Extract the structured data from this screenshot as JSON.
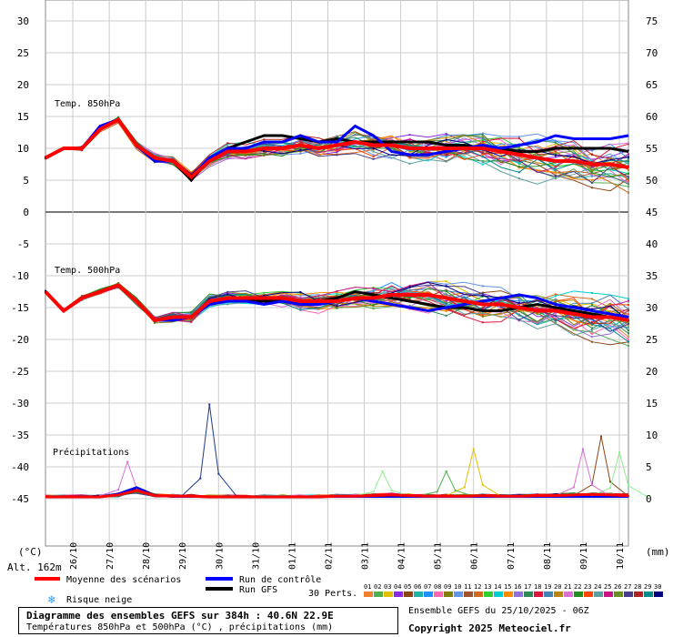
{
  "chart_data": {
    "type": "line",
    "title": "Diagramme des ensembles GEFS sur 384h : 40.6N 22.9E",
    "subtitle": "Températures 850hPa et 500hPa (°C) , précipitations (mm)",
    "run_info": "Ensemble GEFS du 25/10/2025 - 06Z",
    "copyright": "Copyright 2025 Meteociel.fr",
    "altitude_label": "Alt. 162m",
    "left_unit": "(°C)",
    "right_unit": "(mm)",
    "perts_label": "30 Perts.",
    "left_ticks": [
      30,
      25,
      20,
      15,
      10,
      5,
      0,
      -5,
      -10,
      -15,
      -20,
      -25,
      -30,
      -35,
      -40,
      -45
    ],
    "right_ticks": [
      75,
      70,
      65,
      60,
      55,
      50,
      45,
      40,
      35,
      30,
      25,
      20,
      15,
      10,
      5,
      0
    ],
    "dates": [
      "26/10",
      "27/10",
      "28/10",
      "29/10",
      "30/10",
      "31/10",
      "01/11",
      "02/11",
      "03/11",
      "04/11",
      "05/11",
      "06/11",
      "07/11",
      "08/11",
      "09/11",
      "10/11"
    ],
    "panel_labels": [
      "Temp. 850hPa",
      "Temp. 500hPa",
      "Précipitations"
    ],
    "legend": [
      {
        "name": "Moyenne des scénarios",
        "color": "#ff0000"
      },
      {
        "name": "Run de contrôle",
        "color": "#0000ff"
      },
      {
        "name": "Run GFS",
        "color": "#000000"
      },
      {
        "name": "Risque neige",
        "color": "#3399ff"
      }
    ],
    "member_numbers": [
      "01",
      "02",
      "03",
      "04",
      "05",
      "06",
      "07",
      "08",
      "09",
      "10",
      "11",
      "12",
      "13",
      "14",
      "15",
      "16",
      "17",
      "18",
      "19",
      "20",
      "21",
      "22",
      "23",
      "24",
      "25",
      "26",
      "27",
      "28",
      "29",
      "30"
    ],
    "member_colors": [
      "#f08030",
      "#50b050",
      "#e0c000",
      "#8a2be2",
      "#8b4513",
      "#20b2aa",
      "#1e90ff",
      "#ff69b4",
      "#7f7f00",
      "#6495ed",
      "#a0522d",
      "#d2691e",
      "#32cd32",
      "#00ced1",
      "#ff8c00",
      "#9370db",
      "#2e8b57",
      "#dc143c",
      "#4682b4",
      "#b8860b",
      "#da70d6",
      "#228b22",
      "#ff4500",
      "#5f9ea0",
      "#c71585",
      "#6b8e23",
      "#483d8b",
      "#b22222",
      "#008b8b",
      "#000080"
    ],
    "x_hours": [
      0,
      12,
      24,
      36,
      48,
      60,
      72,
      84,
      96,
      108,
      120,
      132,
      144,
      156,
      168,
      180,
      192,
      204,
      216,
      228,
      240,
      252,
      264,
      276,
      288,
      300,
      312,
      324,
      336,
      348,
      360,
      372,
      384
    ],
    "t850": {
      "mean": [
        8.5,
        10.0,
        10.0,
        13.0,
        14.5,
        10.5,
        8.5,
        8.0,
        5.5,
        8.0,
        9.5,
        9.5,
        10.0,
        10.0,
        10.5,
        10.0,
        10.5,
        11.0,
        10.5,
        10.5,
        10.0,
        10.0,
        10.0,
        10.0,
        10.0,
        9.5,
        9.0,
        8.5,
        8.0,
        8.0,
        7.5,
        7.5,
        7.0
      ],
      "control": [
        8.5,
        10.0,
        10.0,
        13.5,
        14.5,
        10.5,
        8.0,
        8.0,
        5.5,
        8.5,
        10.0,
        10.0,
        11.0,
        11.0,
        12.0,
        11.0,
        11.0,
        13.5,
        12.0,
        9.5,
        9.0,
        9.0,
        9.5,
        10.0,
        10.5,
        10.0,
        10.5,
        11.0,
        12.0,
        11.5,
        11.5,
        11.5,
        12.0
      ],
      "gfs": [
        8.5,
        10.0,
        10.0,
        13.0,
        14.5,
        10.5,
        8.5,
        8.0,
        5.0,
        8.5,
        10.0,
        11.0,
        12.0,
        12.0,
        11.5,
        11.0,
        11.5,
        11.0,
        11.0,
        11.0,
        11.0,
        11.0,
        10.5,
        10.5,
        10.0,
        10.0,
        9.5,
        9.5,
        10.0,
        10.0,
        10.0,
        10.0,
        9.5
      ]
    },
    "t500": {
      "mean": [
        -12.5,
        -15.5,
        -13.5,
        -12.5,
        -11.5,
        -14.0,
        -17.0,
        -16.5,
        -16.5,
        -14.0,
        -13.5,
        -13.5,
        -13.5,
        -13.5,
        -14.0,
        -14.0,
        -14.0,
        -13.5,
        -13.5,
        -13.0,
        -13.0,
        -13.0,
        -13.5,
        -14.0,
        -14.5,
        -14.5,
        -15.0,
        -15.5,
        -15.5,
        -16.0,
        -16.5,
        -16.5,
        -17.0
      ],
      "control": [
        -12.5,
        -15.5,
        -13.5,
        -12.5,
        -11.5,
        -14.0,
        -17.0,
        -17.0,
        -16.5,
        -14.5,
        -14.0,
        -14.0,
        -14.5,
        -14.0,
        -14.5,
        -14.5,
        -14.0,
        -13.5,
        -14.0,
        -14.5,
        -15.0,
        -15.5,
        -15.0,
        -14.5,
        -14.0,
        -13.5,
        -13.0,
        -13.5,
        -14.5,
        -15.0,
        -15.5,
        -16.0,
        -16.5
      ],
      "gfs": [
        -12.5,
        -15.5,
        -13.5,
        -12.5,
        -11.5,
        -14.0,
        -17.0,
        -16.5,
        -16.5,
        -14.0,
        -13.5,
        -14.0,
        -14.0,
        -14.0,
        -14.5,
        -14.0,
        -13.5,
        -12.5,
        -13.0,
        -13.5,
        -14.0,
        -14.5,
        -15.0,
        -15.0,
        -15.5,
        -15.5,
        -15.0,
        -14.5,
        -15.0,
        -15.5,
        -16.0,
        -16.5,
        -17.0
      ]
    },
    "precip": {
      "mean": [
        0,
        0,
        0,
        0,
        0.3,
        1.0,
        0.2,
        0.1,
        0.1,
        0,
        0,
        0,
        0,
        0,
        0,
        0,
        0.1,
        0.1,
        0.2,
        0.3,
        0.2,
        0.1,
        0.1,
        0.1,
        0.2,
        0.1,
        0.1,
        0.2,
        0.2,
        0.3,
        0.4,
        0.3,
        0.2
      ],
      "control": [
        0,
        0,
        0,
        0,
        0.5,
        1.5,
        0.2,
        0,
        0,
        0,
        0,
        0,
        0,
        0,
        0,
        0,
        0,
        0,
        0,
        0,
        0,
        0,
        0,
        0,
        0,
        0,
        0,
        0,
        0,
        0,
        0,
        0,
        0
      ],
      "gfs": [
        0,
        0,
        0,
        0,
        0.5,
        1.5,
        0.3,
        0,
        0,
        0,
        0,
        0,
        0,
        0,
        0,
        0,
        0,
        0,
        0,
        0,
        0,
        0,
        0,
        0,
        0,
        0,
        0,
        0,
        0,
        0,
        0,
        0,
        0
      ],
      "peaks": [
        {
          "hour": 108,
          "value": 14.5,
          "color": "#1e3a8a"
        },
        {
          "hour": 54,
          "value": 5.5,
          "color": "#da70d6"
        },
        {
          "hour": 282,
          "value": 7.5,
          "color": "#e0c000"
        },
        {
          "hour": 366,
          "value": 9.5,
          "color": "#8b4513"
        },
        {
          "hour": 378,
          "value": 7.0,
          "color": "#90ee90"
        },
        {
          "hour": 354,
          "value": 7.5,
          "color": "#da70d6"
        },
        {
          "hour": 264,
          "value": 4.0,
          "color": "#50b050"
        },
        {
          "hour": 222,
          "value": 4.0,
          "color": "#90ee90"
        }
      ]
    }
  }
}
